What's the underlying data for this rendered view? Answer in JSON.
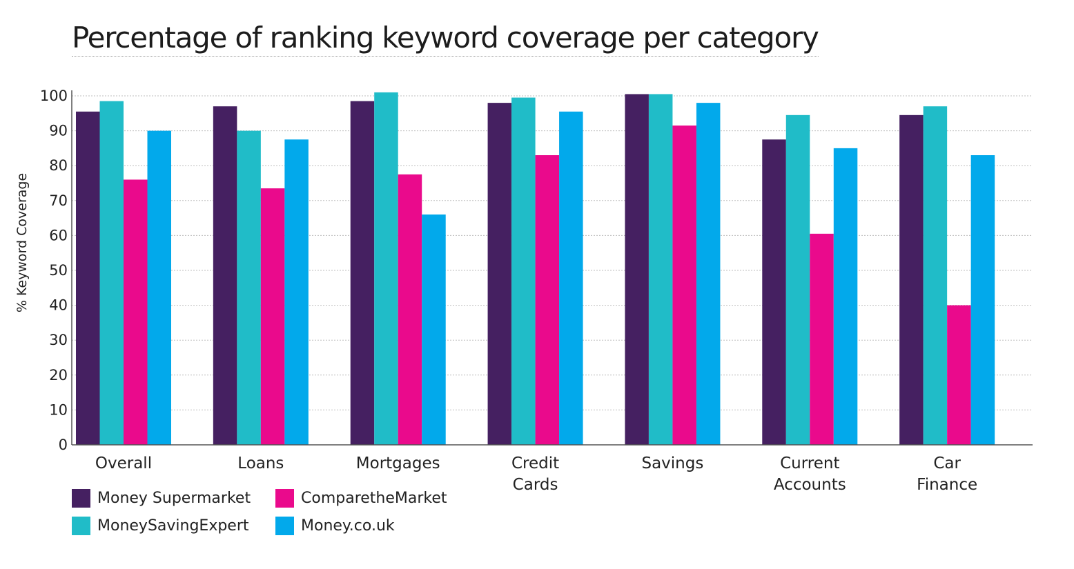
{
  "chart_data": {
    "type": "bar",
    "title": "Percentage of ranking keyword coverage per category",
    "ylabel": "% Keyword Coverage",
    "xlabel": "",
    "ylim": [
      0,
      100
    ],
    "yticks": [
      0,
      10,
      20,
      30,
      40,
      50,
      60,
      70,
      80,
      90,
      100
    ],
    "grid": true,
    "legend_position": "bottom-left",
    "categories": [
      [
        "Overall"
      ],
      [
        "Loans"
      ],
      [
        "Mortgages"
      ],
      [
        "Credit",
        "Cards"
      ],
      [
        "Savings"
      ],
      [
        "Current",
        "Accounts"
      ],
      [
        "Car",
        "Finance"
      ]
    ],
    "series": [
      {
        "name": "Money Supermarket",
        "color": "#452061",
        "values": [
          95.5,
          97,
          98.5,
          98,
          100.5,
          87.5,
          94.5
        ]
      },
      {
        "name": "MoneySavingExpert",
        "color": "#20bcc8",
        "values": [
          98.5,
          90,
          101,
          99.5,
          100.5,
          94.5,
          97
        ]
      },
      {
        "name": "ComparetheMarket",
        "color": "#ea0a8c",
        "values": [
          76,
          73.5,
          77.5,
          83,
          91.5,
          60.5,
          40
        ]
      },
      {
        "name": "Money.co.uk",
        "color": "#02a9eb",
        "values": [
          90,
          87.5,
          66,
          95.5,
          98,
          85,
          83
        ]
      }
    ]
  }
}
